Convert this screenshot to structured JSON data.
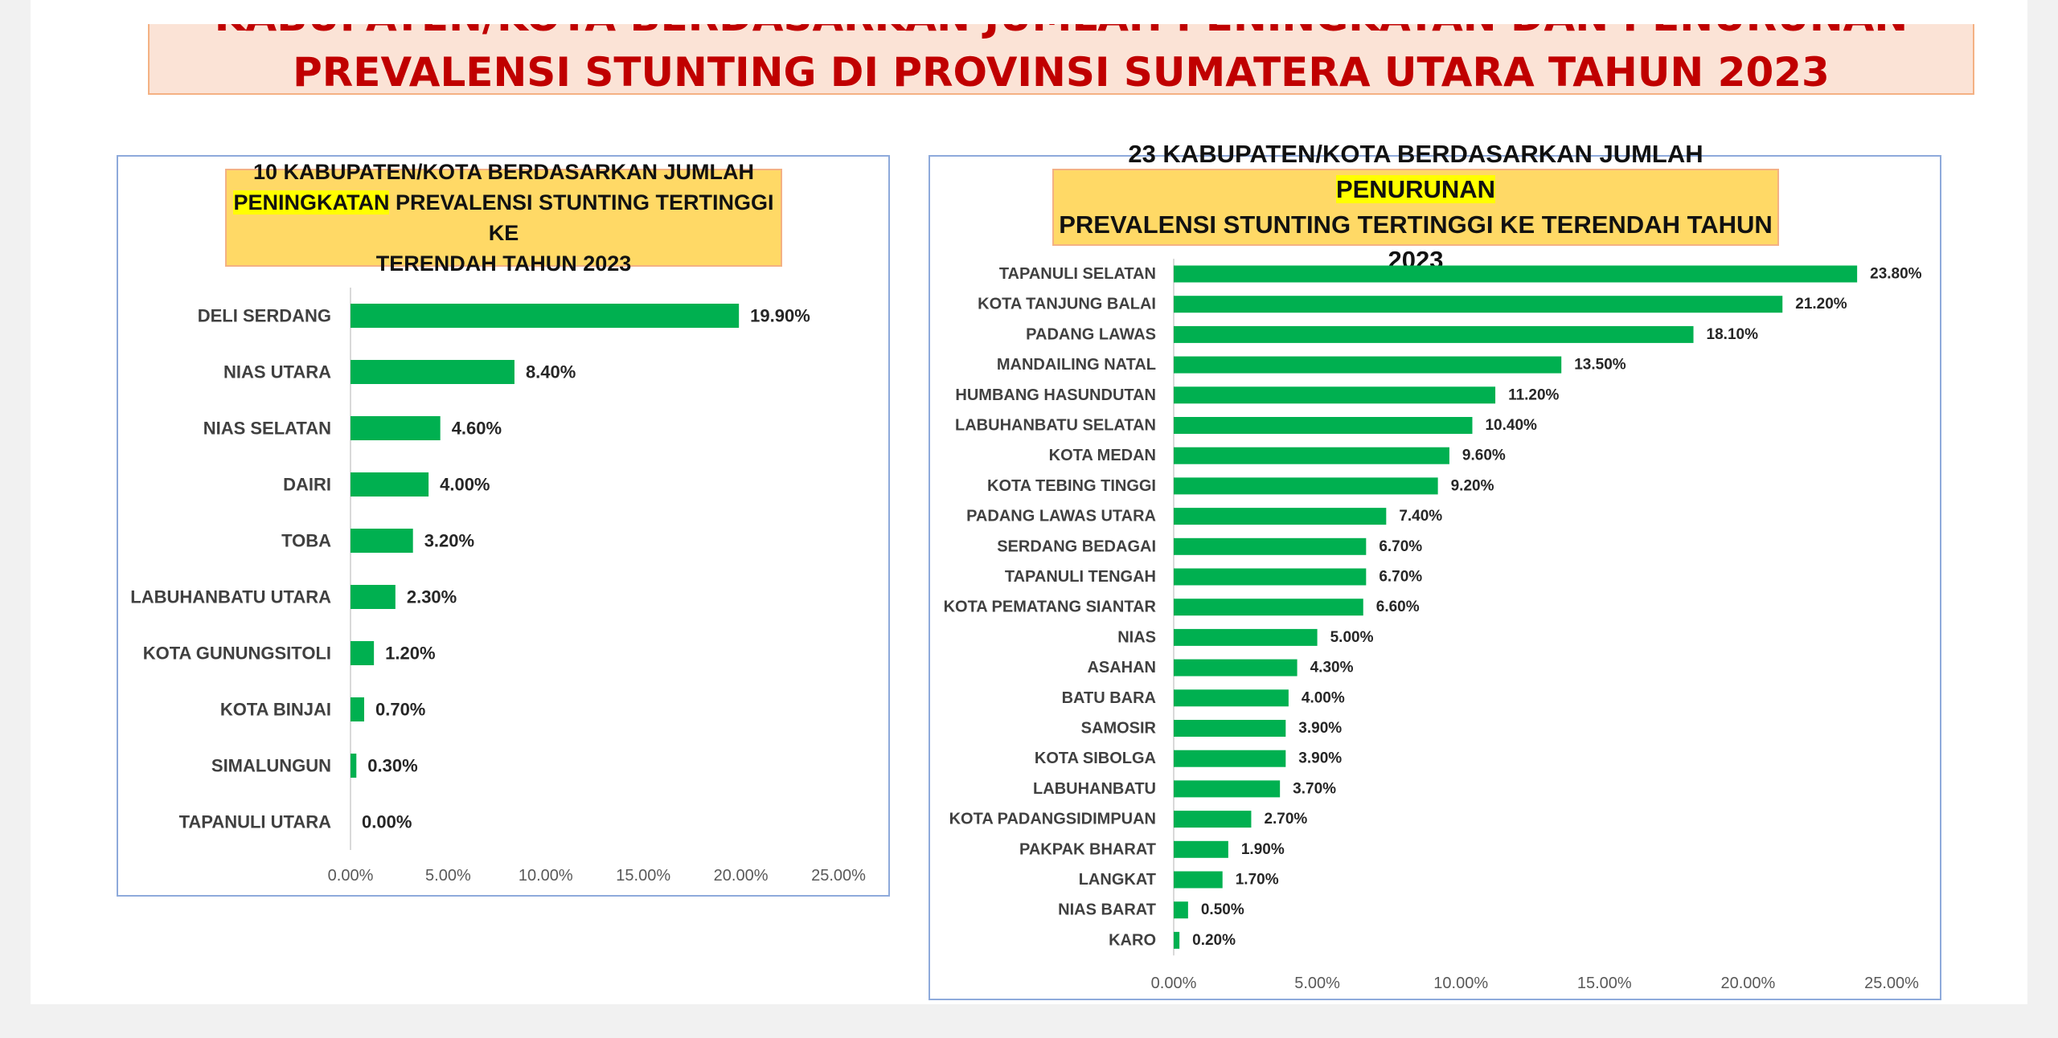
{
  "header": {
    "title_line_1": "KABUPATEN/KOTA BERDASARKAN JUMLAH PENINGKATAN DAN PENURUNAN",
    "title_line_2": "PREVALENSI STUNTING DI PROVINSI SUMATERA UTARA TAHUN 2023"
  },
  "colors": {
    "bar": "#00b050",
    "title_text": "#c00000",
    "banner_fill": "#fbe3d6",
    "chart_title_fill": "#ffd966",
    "highlight": "#ffff00",
    "panel_border": "#8eaadb"
  },
  "chart_data": [
    {
      "type": "bar",
      "orientation": "horizontal",
      "title_parts": [
        {
          "text": "10 KABUPATEN/KOTA BERDASARKAN JUMLAH",
          "highlight": false,
          "break_after": true
        },
        {
          "text": "PENINGKATAN",
          "highlight": true,
          "break_after": false
        },
        {
          "text": " PREVALENSI STUNTING TERTINGGI KE",
          "highlight": false,
          "break_after": true
        },
        {
          "text": "TERENDAH TAHUN 2023",
          "highlight": false,
          "break_after": false
        }
      ],
      "categories": [
        "DELI SERDANG",
        "NIAS UTARA",
        "NIAS SELATAN",
        "DAIRI",
        "TOBA",
        "LABUHANBATU UTARA",
        "KOTA GUNUNGSITOLI",
        "KOTA BINJAI",
        "SIMALUNGUN",
        "TAPANULI UTARA"
      ],
      "values": [
        19.9,
        8.4,
        4.6,
        4.0,
        3.2,
        2.3,
        1.2,
        0.7,
        0.3,
        0.0
      ],
      "data_labels": [
        "19.90%",
        "8.40%",
        "4.60%",
        "4.00%",
        "3.20%",
        "2.30%",
        "1.20%",
        "0.70%",
        "0.30%",
        "0.00%"
      ],
      "xlim": [
        0,
        25
      ],
      "x_ticks": [
        0,
        5,
        10,
        15,
        20,
        25
      ],
      "x_tick_labels": [
        "0.00%",
        "5.00%",
        "10.00%",
        "15.00%",
        "20.00%",
        "25.00%"
      ],
      "grid": false,
      "legend": "none"
    },
    {
      "type": "bar",
      "orientation": "horizontal",
      "title_parts": [
        {
          "text": "23 KABUPATEN/KOTA BERDASARKAN JUMLAH ",
          "highlight": false,
          "break_after": false
        },
        {
          "text": "PENURUNAN",
          "highlight": true,
          "break_after": true
        },
        {
          "text": "PREVALENSI STUNTING TERTINGGI KE TERENDAH TAHUN 2023",
          "highlight": false,
          "break_after": false
        }
      ],
      "categories": [
        "TAPANULI SELATAN",
        "KOTA TANJUNG BALAI",
        "PADANG LAWAS",
        "MANDAILING NATAL",
        "HUMBANG HASUNDUTAN",
        "LABUHANBATU SELATAN",
        "KOTA MEDAN",
        "KOTA TEBING TINGGI",
        "PADANG LAWAS UTARA",
        "SERDANG BEDAGAI",
        "TAPANULI TENGAH",
        "KOTA PEMATANG SIANTAR",
        "NIAS",
        "ASAHAN",
        "BATU BARA",
        "SAMOSIR",
        "KOTA SIBOLGA",
        "LABUHANBATU",
        "KOTA PADANGSIDIMPUAN",
        "PAKPAK BHARAT",
        "LANGKAT",
        "NIAS BARAT",
        "KARO"
      ],
      "values": [
        23.8,
        21.2,
        18.1,
        13.5,
        11.2,
        10.4,
        9.6,
        9.2,
        7.4,
        6.7,
        6.7,
        6.6,
        5.0,
        4.3,
        4.0,
        3.9,
        3.9,
        3.7,
        2.7,
        1.9,
        1.7,
        0.5,
        0.2
      ],
      "data_labels": [
        "23.80%",
        "21.20%",
        "18.10%",
        "13.50%",
        "11.20%",
        "10.40%",
        "9.60%",
        "9.20%",
        "7.40%",
        "6.70%",
        "6.70%",
        "6.60%",
        "5.00%",
        "4.30%",
        "4.00%",
        "3.90%",
        "3.90%",
        "3.70%",
        "2.70%",
        "1.90%",
        "1.70%",
        "0.50%",
        "0.20%"
      ],
      "xlim": [
        0,
        25
      ],
      "x_ticks": [
        0,
        5,
        10,
        15,
        20,
        25
      ],
      "x_tick_labels": [
        "0.00%",
        "5.00%",
        "10.00%",
        "15.00%",
        "20.00%",
        "25.00%"
      ],
      "grid": false,
      "legend": "none"
    }
  ]
}
